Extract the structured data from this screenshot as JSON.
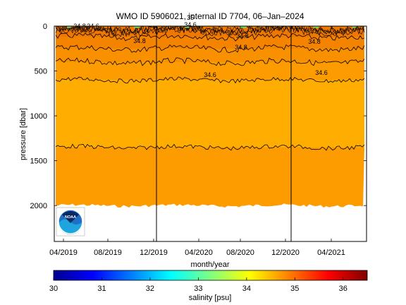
{
  "chart_data": {
    "type": "heatmap",
    "title": "WMO ID 5906021, internal ID 7704, 06–Jan–2024",
    "xlabel": "month/year",
    "ylabel": "pressure [dbar]",
    "x_tick_labels": [
      "04/2019",
      "08/2019",
      "12/2019",
      "04/2020",
      "08/2020",
      "12/2020",
      "04/2021"
    ],
    "y_tick_labels": [
      "0",
      "500",
      "1000",
      "1500",
      "2000"
    ],
    "y_ticks": [
      0,
      500,
      1000,
      1500,
      2000
    ],
    "ylim": [
      2400,
      0
    ],
    "y_reversed": true,
    "profile_max_pressure": 2000,
    "vertical_markers": [
      "12/2019",
      "12/2020"
    ],
    "contour_labels": [
      "34.8",
      "34.8",
      "34.8",
      "34.8",
      "34.6",
      "34.6",
      "34.6",
      "34.6",
      "35",
      "34.8"
    ],
    "colorbar": {
      "label": "salinity [psu]",
      "ticks": [
        "30",
        "31",
        "32",
        "33",
        "34",
        "35",
        "36"
      ],
      "tick_values": [
        30,
        31,
        32,
        33,
        34,
        35,
        36
      ],
      "range": [
        30,
        36.5
      ]
    },
    "bands": [
      {
        "pressure_top": 0,
        "pressure_bottom": 120,
        "salinity": 35.1,
        "color": "#f07800"
      },
      {
        "pressure_top": 120,
        "pressure_bottom": 250,
        "salinity": 34.95,
        "color": "#f48400"
      },
      {
        "pressure_top": 250,
        "pressure_bottom": 400,
        "salinity": 34.85,
        "color": "#f89000"
      },
      {
        "pressure_top": 400,
        "pressure_bottom": 600,
        "salinity": 34.75,
        "color": "#fc9c00"
      },
      {
        "pressure_top": 600,
        "pressure_bottom": 1350,
        "salinity": 34.6,
        "color": "#ffad00"
      },
      {
        "pressure_top": 1350,
        "pressure_bottom": 2000,
        "salinity": 34.75,
        "color": "#fc9c00"
      }
    ],
    "contour_pressures": [
      120,
      250,
      400,
      600,
      1350
    ],
    "grid": false,
    "logo": "noaa-logo"
  }
}
